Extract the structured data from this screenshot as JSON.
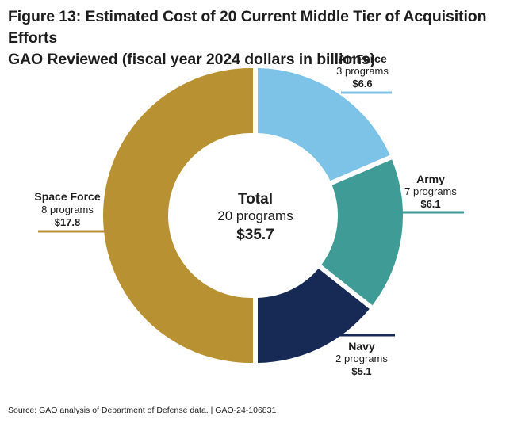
{
  "title_lines": [
    "Figure 13: Estimated Cost of 20 Current Middle Tier of Acquisition Efforts",
    "GAO Reviewed (fiscal year 2024 dollars in billions)"
  ],
  "source": "Source: GAO analysis of Department of Defense data.  |  GAO-24-106831",
  "colors": {
    "air_force": "#7dc3e8",
    "army": "#3e9b96",
    "navy": "#172a55",
    "space_force": "#b89232"
  },
  "chart_data": {
    "type": "pie",
    "title": "Figure 13: Estimated Cost of 20 Current Middle Tier of Acquisition Efforts GAO Reviewed (fiscal year 2024 dollars in billions)",
    "total": {
      "label": "Total",
      "programs_label": "20 programs",
      "value_label": "$35.7",
      "value": 35.7,
      "programs": 20
    },
    "slices": [
      {
        "name": "Air Force",
        "programs_label": "3 programs",
        "value_label": "$6.6",
        "value": 6.6,
        "programs": 3,
        "color": "#7dc3e8"
      },
      {
        "name": "Army",
        "programs_label": "7 programs",
        "value_label": "$6.1",
        "value": 6.1,
        "programs": 7,
        "color": "#3e9b96"
      },
      {
        "name": "Navy",
        "programs_label": "2 programs",
        "value_label": "$5.1",
        "value": 5.1,
        "programs": 2,
        "color": "#172a55"
      },
      {
        "name": "Space Force",
        "programs_label": "8 programs",
        "value_label": "$17.8",
        "value": 17.8,
        "programs": 8,
        "color": "#b89232"
      }
    ]
  }
}
